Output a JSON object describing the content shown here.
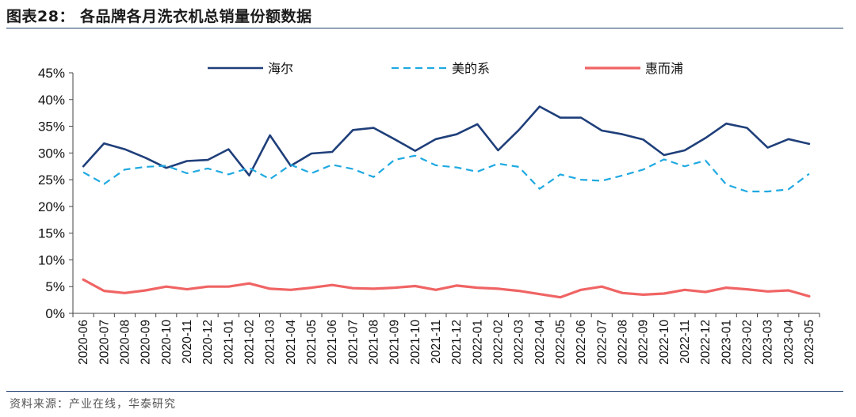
{
  "header": {
    "title": "图表28：  各品牌各月洗衣机总销量份额数据"
  },
  "footer": {
    "source": "资料来源：产业在线，华泰研究"
  },
  "chart_data": {
    "type": "line",
    "ylim": [
      0,
      45
    ],
    "yticks": [
      "0%",
      "5%",
      "10%",
      "15%",
      "20%",
      "25%",
      "30%",
      "35%",
      "40%",
      "45%"
    ],
    "legend_position": "top",
    "categories": [
      "2020-06",
      "2020-07",
      "2020-08",
      "2020-09",
      "2020-10",
      "2020-11",
      "2020-12",
      "2021-01",
      "2021-02",
      "2021-03",
      "2021-04",
      "2021-05",
      "2021-06",
      "2021-07",
      "2021-08",
      "2021-09",
      "2021-10",
      "2021-11",
      "2021-12",
      "2022-01",
      "2022-02",
      "2022-03",
      "2022-04",
      "2022-05",
      "2022-06",
      "2022-07",
      "2022-08",
      "2022-09",
      "2022-10",
      "2022-11",
      "2022-12",
      "2023-01",
      "2023-02",
      "2023-03",
      "2023-04",
      "2023-05"
    ],
    "series": [
      {
        "name": "海尔",
        "color": "#1f3f7a",
        "style": "solid",
        "values": [
          27.5,
          31.8,
          30.7,
          29.1,
          27.2,
          28.5,
          28.7,
          30.7,
          25.8,
          33.3,
          27.6,
          29.9,
          30.2,
          34.3,
          34.7,
          32.6,
          30.4,
          32.6,
          33.5,
          35.4,
          30.5,
          34.3,
          38.7,
          36.6,
          36.6,
          34.2,
          33.5,
          32.5,
          29.6,
          30.5,
          32.8,
          35.5,
          34.7,
          31.0,
          32.6,
          31.7
        ]
      },
      {
        "name": "美的系",
        "color": "#1fa9e1",
        "style": "dashed",
        "values": [
          26.4,
          24.2,
          26.9,
          27.4,
          27.6,
          26.2,
          27.1,
          26.0,
          27.2,
          25.1,
          27.8,
          26.2,
          27.8,
          27.0,
          25.5,
          28.7,
          29.5,
          27.7,
          27.3,
          26.5,
          28.0,
          27.4,
          23.3,
          26.0,
          25.0,
          24.8,
          25.8,
          26.9,
          28.8,
          27.5,
          28.6,
          24.1,
          22.8,
          22.8,
          23.2,
          26.1
        ]
      },
      {
        "name": "惠而浦",
        "color": "#f06464",
        "style": "solid",
        "values": [
          6.3,
          4.2,
          3.8,
          4.3,
          5.0,
          4.5,
          5.0,
          5.0,
          5.6,
          4.6,
          4.4,
          4.8,
          5.3,
          4.7,
          4.6,
          4.8,
          5.1,
          4.4,
          5.2,
          4.8,
          4.6,
          4.2,
          3.6,
          3.0,
          4.4,
          5.0,
          3.8,
          3.5,
          3.7,
          4.4,
          4.0,
          4.8,
          4.5,
          4.1,
          4.3,
          3.2
        ]
      }
    ]
  }
}
